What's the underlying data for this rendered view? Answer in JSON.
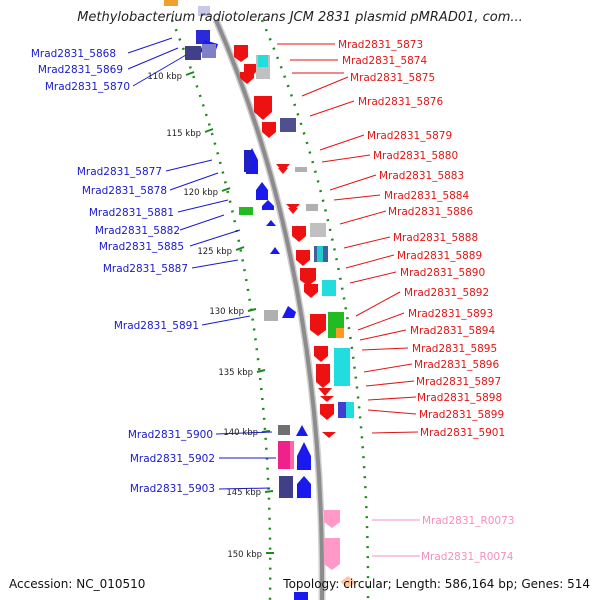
{
  "title": "Methylobacterium radiotolerans JCM 2831 plasmid pMRAD01, com...",
  "accession": "Accession: NC_010510",
  "topology": "Topology: circular; Length: 586,164 bp; Genes: 514",
  "scale_labels": [
    "110 kbp",
    "115 kbp",
    "120 kbp",
    "125 kbp",
    "130 kbp",
    "135 kbp",
    "140 kbp",
    "145 kbp",
    "150 kbp"
  ],
  "colors": {
    "left_label": "#1a1acc",
    "right_label": "#e01515",
    "rna_label": "#f48fc0",
    "backbone": "#8c8c8c",
    "dots": "#1a8a1a"
  },
  "left_genes": [
    "Mrad2831_5868",
    "Mrad2831_5869",
    "Mrad2831_5870",
    "Mrad2831_5877",
    "Mrad2831_5878",
    "Mrad2831_5881",
    "Mrad2831_5882",
    "Mrad2831_5885",
    "Mrad2831_5887",
    "Mrad2831_5891",
    "Mrad2831_5900",
    "Mrad2831_5902",
    "Mrad2831_5903"
  ],
  "right_genes": [
    "Mrad2831_5873",
    "Mrad2831_5874",
    "Mrad2831_5875",
    "Mrad2831_5876",
    "Mrad2831_5879",
    "Mrad2831_5880",
    "Mrad2831_5883",
    "Mrad2831_5884",
    "Mrad2831_5886",
    "Mrad2831_5888",
    "Mrad2831_5889",
    "Mrad2831_5890",
    "Mrad2831_5892",
    "Mrad2831_5893",
    "Mrad2831_5894",
    "Mrad2831_5895",
    "Mrad2831_5896",
    "Mrad2831_5897",
    "Mrad2831_5898",
    "Mrad2831_5899",
    "Mrad2831_5901"
  ],
  "rna_genes": [
    "Mrad2831_R0073",
    "Mrad2831_R0074"
  ]
}
